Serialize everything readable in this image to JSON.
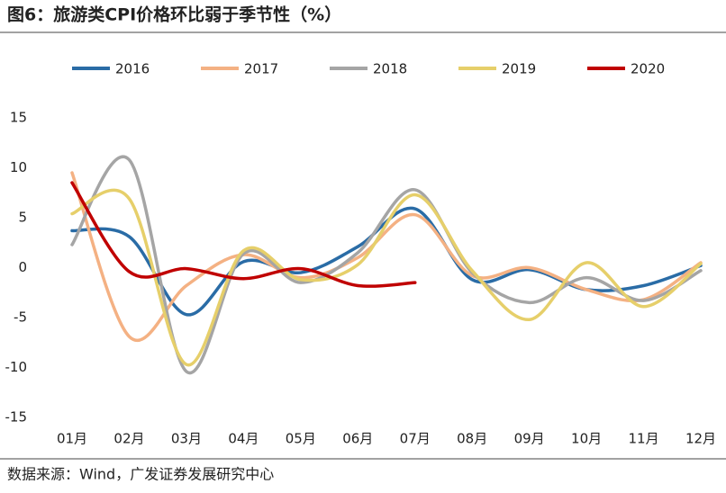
{
  "chart_data": {
    "type": "line",
    "title": "图6：旅游类CPI价格环比弱于季节性（%）",
    "source": "数据来源：Wind，广发证券发展研究中心",
    "categories": [
      "01月",
      "02月",
      "03月",
      "04月",
      "05月",
      "06月",
      "07月",
      "08月",
      "09月",
      "10月",
      "11月",
      "12月"
    ],
    "ylim": [
      -15,
      15
    ],
    "yticks": [
      -15,
      -10,
      -5,
      0,
      5,
      10,
      15
    ],
    "grid": false,
    "legend": "top",
    "smooth": true,
    "series": [
      {
        "name": "2016",
        "color": "#2a6ca6",
        "values": [
          3.7,
          3.1,
          -4.7,
          0.6,
          -0.5,
          2.1,
          5.9,
          -1.2,
          -0.2,
          -2.2,
          -1.8,
          0.2
        ]
      },
      {
        "name": "2017",
        "color": "#f4b183",
        "values": [
          9.5,
          -6.9,
          -1.8,
          1.3,
          -1.0,
          1.0,
          5.3,
          -0.8,
          0.0,
          -2.2,
          -3.2,
          0.5
        ]
      },
      {
        "name": "2018",
        "color": "#a5a5a5",
        "values": [
          2.3,
          10.8,
          -10.4,
          1.4,
          -1.5,
          1.5,
          7.8,
          -0.5,
          -3.5,
          -1.0,
          -3.3,
          -0.3
        ]
      },
      {
        "name": "2019",
        "color": "#e6cf6a",
        "values": [
          5.4,
          6.9,
          -9.7,
          1.7,
          -1.2,
          0.3,
          7.3,
          -0.3,
          -5.2,
          0.5,
          -3.9,
          0.4
        ]
      },
      {
        "name": "2020",
        "color": "#c00000",
        "values": [
          8.5,
          -0.4,
          -0.1,
          -1.1,
          -0.1,
          -1.8,
          -1.5,
          null,
          null,
          null,
          null,
          null
        ]
      }
    ]
  }
}
